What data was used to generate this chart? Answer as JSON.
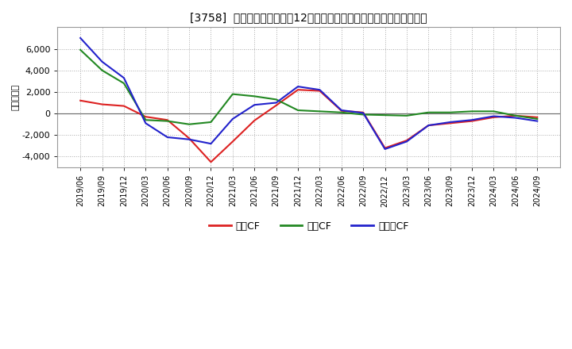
{
  "title": "[3758]  キャッシュフローの12か月移動合計の対前年同期増減額の推移",
  "ylabel": "（百万円）",
  "background_color": "#ffffff",
  "plot_background": "#ffffff",
  "grid_color": "#aaaaaa",
  "x_labels": [
    "2019/06",
    "2019/09",
    "2019/12",
    "2020/03",
    "2020/06",
    "2020/09",
    "2020/12",
    "2021/03",
    "2021/06",
    "2021/09",
    "2021/12",
    "2022/03",
    "2022/06",
    "2022/09",
    "2022/12",
    "2023/03",
    "2023/06",
    "2023/09",
    "2023/12",
    "2024/03",
    "2024/06",
    "2024/09"
  ],
  "eigyo_cf": [
    1200,
    850,
    700,
    -300,
    -600,
    -2300,
    -4500,
    -2600,
    -650,
    750,
    2200,
    2100,
    250,
    100,
    -3200,
    -2500,
    -1100,
    -900,
    -700,
    -350,
    -200,
    -350
  ],
  "toshi_cf": [
    5900,
    4000,
    2800,
    -600,
    -700,
    -1000,
    -800,
    1800,
    1600,
    1300,
    300,
    200,
    100,
    -100,
    -150,
    -200,
    100,
    100,
    200,
    200,
    -200,
    -500
  ],
  "free_cf": [
    7000,
    4800,
    3300,
    -900,
    -2200,
    -2400,
    -2800,
    -500,
    800,
    1000,
    2500,
    2200,
    300,
    50,
    -3300,
    -2600,
    -1100,
    -800,
    -600,
    -250,
    -400,
    -700
  ],
  "eigyo_color": "#dd2222",
  "toshi_color": "#228822",
  "free_color": "#2222cc",
  "ylim_min": -5000,
  "ylim_max": 8000,
  "yticks": [
    -4000,
    -2000,
    0,
    2000,
    4000,
    6000
  ],
  "legend_labels": [
    "営業CF",
    "投資CF",
    "フリーCF"
  ]
}
